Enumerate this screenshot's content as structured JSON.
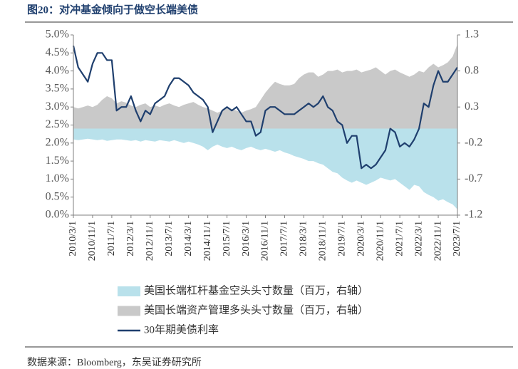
{
  "chart_data": {
    "type": "area-line",
    "title": "图20：对冲基金倾向于做空长端美债",
    "source": "数据来源：Bloomberg，东吴证券研究所",
    "categories": [
      "2010/3/1",
      null,
      null,
      null,
      "2010/11/1",
      null,
      null,
      null,
      "2011/7/1",
      null,
      null,
      null,
      "2012/3/1",
      null,
      null,
      null,
      "2012/11/1",
      null,
      null,
      null,
      "2013/7/1",
      null,
      null,
      null,
      "2014/3/1",
      null,
      null,
      null,
      "2014/11/1",
      null,
      null,
      null,
      "2015/7/1",
      null,
      null,
      null,
      "2016/3/1",
      null,
      null,
      null,
      "2016/11/1",
      null,
      null,
      null,
      "2017/7/1",
      null,
      null,
      null,
      "2018/3/1",
      null,
      null,
      null,
      "2018/11/1",
      null,
      null,
      null,
      "2019/7/1",
      null,
      null,
      null,
      "2020/3/1",
      null,
      null,
      null,
      "2020/11/1",
      null,
      null,
      null,
      "2021/7/1",
      null,
      null,
      null,
      "2022/3/1",
      null,
      null,
      null,
      "2022/11/1",
      null,
      null,
      null,
      "2023/7/1"
    ],
    "series": [
      {
        "name": "美国长端杠杆基金空头头寸数量（百万，右轴）",
        "color": "#b9e1eb",
        "kind": "area",
        "axis": "y2",
        "values": [
          -0.15,
          -0.16,
          -0.15,
          -0.14,
          -0.15,
          -0.16,
          -0.15,
          -0.17,
          -0.16,
          -0.15,
          -0.15,
          -0.16,
          -0.17,
          -0.16,
          -0.18,
          -0.16,
          -0.17,
          -0.18,
          -0.16,
          -0.17,
          -0.18,
          -0.16,
          -0.18,
          -0.2,
          -0.18,
          -0.2,
          -0.22,
          -0.25,
          -0.3,
          -0.25,
          -0.22,
          -0.25,
          -0.27,
          -0.25,
          -0.28,
          -0.3,
          -0.27,
          -0.25,
          -0.28,
          -0.3,
          -0.28,
          -0.3,
          -0.32,
          -0.3,
          -0.33,
          -0.35,
          -0.38,
          -0.4,
          -0.42,
          -0.45,
          -0.45,
          -0.48,
          -0.5,
          -0.55,
          -0.6,
          -0.62,
          -0.68,
          -0.72,
          -0.75,
          -0.72,
          -0.75,
          -0.78,
          -0.75,
          -0.72,
          -0.68,
          -0.7,
          -0.72,
          -0.7,
          -0.75,
          -0.8,
          -0.85,
          -0.78,
          -0.8,
          -0.88,
          -0.92,
          -0.95,
          -1.0,
          -0.98,
          -1.02,
          -1.05,
          -1.12
        ]
      },
      {
        "name": "美国长端资产管理多头头寸数量（百万，右轴）",
        "color": "#c9c9c9",
        "kind": "area",
        "axis": "y2",
        "values": [
          0.3,
          0.28,
          0.3,
          0.32,
          0.3,
          0.33,
          0.4,
          0.45,
          0.42,
          0.35,
          0.38,
          0.36,
          0.32,
          0.3,
          0.33,
          0.35,
          0.3,
          0.32,
          0.3,
          0.33,
          0.35,
          0.32,
          0.3,
          0.33,
          0.35,
          0.37,
          0.33,
          0.3,
          0.28,
          0.25,
          0.22,
          0.25,
          0.3,
          0.27,
          0.25,
          0.22,
          0.25,
          0.27,
          0.3,
          0.4,
          0.5,
          0.58,
          0.65,
          0.62,
          0.6,
          0.6,
          0.62,
          0.7,
          0.75,
          0.78,
          0.78,
          0.72,
          0.75,
          0.8,
          0.8,
          0.82,
          0.78,
          0.8,
          0.8,
          0.82,
          0.78,
          0.8,
          0.82,
          0.85,
          0.8,
          0.75,
          0.8,
          0.82,
          0.78,
          0.75,
          0.72,
          0.75,
          0.8,
          0.78,
          0.85,
          0.9,
          0.85,
          0.88,
          0.92,
          1.0,
          1.17
        ]
      },
      {
        "name": "30年期美债利率",
        "color": "#1f3f6e",
        "kind": "line",
        "values": [
          4.7,
          4.1,
          3.9,
          3.7,
          4.2,
          4.5,
          4.5,
          4.3,
          4.3,
          2.9,
          3.0,
          3.0,
          3.3,
          2.9,
          2.6,
          2.9,
          2.8,
          3.1,
          3.2,
          3.3,
          3.6,
          3.8,
          3.8,
          3.7,
          3.6,
          3.4,
          3.3,
          3.2,
          3.0,
          2.3,
          2.6,
          2.9,
          3.0,
          2.9,
          3.0,
          2.8,
          2.6,
          2.6,
          2.2,
          2.3,
          2.9,
          3.0,
          3.0,
          2.9,
          2.8,
          2.8,
          2.8,
          2.9,
          3.0,
          3.1,
          3.0,
          3.1,
          3.3,
          3.0,
          2.9,
          2.6,
          2.5,
          2.0,
          2.2,
          2.2,
          1.3,
          1.4,
          1.3,
          1.4,
          1.6,
          1.8,
          2.4,
          2.3,
          1.9,
          2.0,
          1.9,
          2.1,
          2.4,
          3.1,
          3.0,
          3.6,
          4.0,
          3.7,
          3.7,
          3.9,
          4.1
        ]
      }
    ],
    "ylim": [
      0,
      5
    ],
    "yticks": [
      {
        "value": 0,
        "label": "0.0%"
      },
      {
        "value": 0.5,
        "label": "0.5%"
      },
      {
        "value": 1,
        "label": "1.0%"
      },
      {
        "value": 1.5,
        "label": "1.5%"
      },
      {
        "value": 2,
        "label": "2.0%"
      },
      {
        "value": 2.5,
        "label": "2.5%"
      },
      {
        "value": 3,
        "label": "3.0%"
      },
      {
        "value": 3.5,
        "label": "3.5%"
      },
      {
        "value": 4,
        "label": "4.0%"
      },
      {
        "value": 4.5,
        "label": "4.5%"
      },
      {
        "value": 5,
        "label": "5.0%"
      }
    ],
    "y2lim": [
      -1.2,
      1.3
    ],
    "y2ticks": [
      -1.2,
      -0.7,
      -0.2,
      0.3,
      0.8,
      1.3
    ],
    "grid": false
  }
}
